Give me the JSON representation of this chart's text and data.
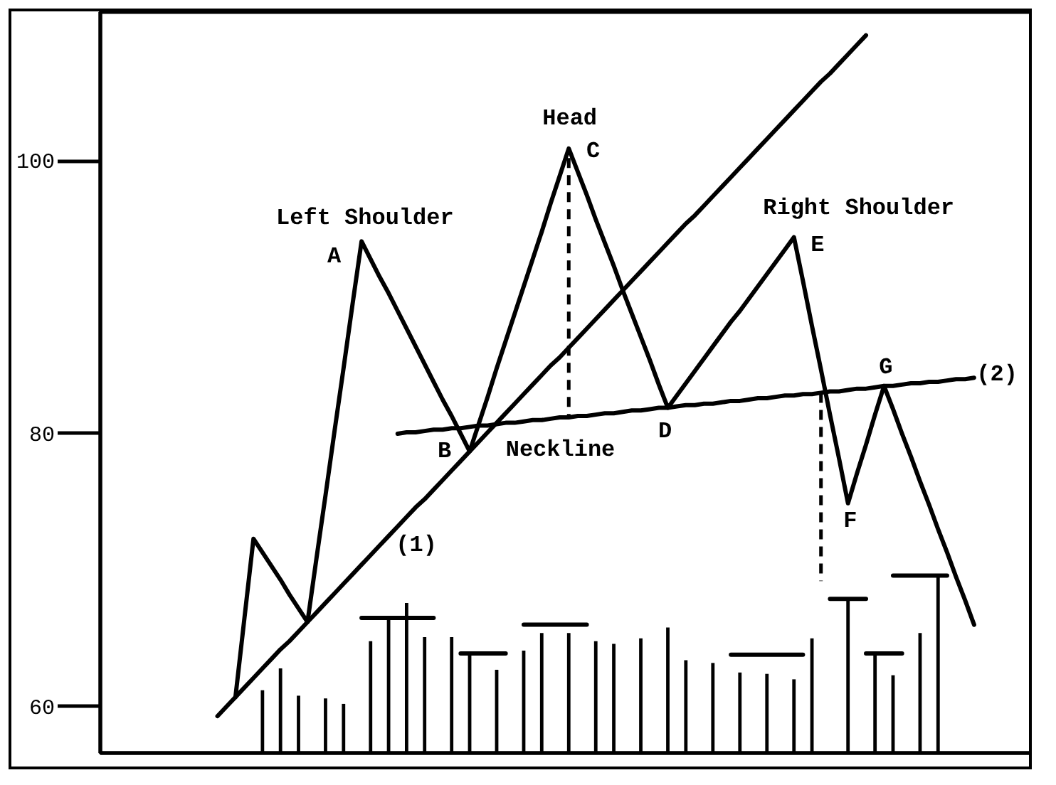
{
  "chart_data": {
    "type": "line",
    "ylim": [
      56.6,
      110.9
    ],
    "yticks": [
      60,
      80,
      100
    ],
    "tick_labels": "y",
    "line_style": "solid",
    "categories": [
      null,
      null,
      null,
      null,
      null,
      null,
      null,
      null,
      null,
      null,
      null,
      null,
      null,
      null,
      null,
      null,
      null,
      null,
      null,
      null,
      null,
      null,
      null,
      null,
      null,
      null,
      null,
      null,
      null,
      null,
      null,
      null,
      null,
      null,
      null,
      null,
      null,
      null,
      null,
      null,
      null,
      null,
      null,
      null,
      null,
      null,
      null,
      null,
      null,
      null,
      null,
      null,
      null,
      null,
      null,
      null,
      null,
      null,
      null,
      null,
      null,
      null,
      null,
      null,
      null,
      null,
      null,
      null,
      null,
      null,
      null,
      null,
      null,
      null,
      null,
      null,
      null,
      null,
      null,
      null,
      null,
      null,
      null,
      null,
      null
    ],
    "series": [
      {
        "type": "bar",
        "color": "#000000",
        "values": [
          null,
          null,
          null,
          null,
          null,
          61.2,
          null,
          62.8,
          null,
          60.8,
          null,
          null,
          60.6,
          null,
          60.2,
          null,
          null,
          64.8,
          null,
          66.5,
          null,
          67.6,
          null,
          65.1,
          null,
          null,
          65.1,
          null,
          63.9,
          null,
          null,
          62.7,
          null,
          null,
          64.1,
          null,
          65.4,
          null,
          null,
          65.4,
          null,
          null,
          64.8,
          null,
          64.6,
          null,
          null,
          65.0,
          null,
          null,
          65.8,
          null,
          63.4,
          null,
          null,
          63.2,
          null,
          null,
          62.5,
          null,
          null,
          62.4,
          null,
          null,
          62.0,
          null,
          65.0,
          null,
          null,
          null,
          67.9,
          null,
          null,
          63.9,
          null,
          62.3,
          null,
          null,
          65.4,
          null,
          69.6,
          null,
          null,
          null,
          null
        ]
      },
      {
        "color": "#000000",
        "values": [
          null,
          null,
          null,
          null,
          null,
          null,
          null,
          null,
          null,
          null,
          null,
          null,
          null,
          null,
          null,
          null,
          66.5,
          66.5,
          66.5,
          66.5,
          66.5,
          66.5,
          66.5,
          66.5,
          66.5,
          null,
          null,
          63.9,
          63.9,
          63.9,
          63.9,
          63.9,
          63.9,
          null,
          66.0,
          66.0,
          66.0,
          66.0,
          66.0,
          66.0,
          66.0,
          66.0,
          null,
          null,
          null,
          null,
          null,
          null,
          null,
          null,
          null,
          null,
          null,
          null,
          null,
          null,
          null,
          63.8,
          63.8,
          63.8,
          63.8,
          63.8,
          63.8,
          63.8,
          63.8,
          63.8,
          null,
          null,
          67.9,
          67.9,
          67.9,
          67.9,
          67.9,
          null,
          null,
          69.6,
          69.6,
          69.6,
          69.6,
          69.6,
          69.6,
          69.6,
          null,
          null,
          null
        ]
      },
      {
        "color": "#000000",
        "values": [
          null,
          null,
          null,
          null,
          null,
          null,
          null,
          null,
          null,
          null,
          null,
          null,
          null,
          null,
          null,
          null,
          null,
          null,
          null,
          null,
          null,
          null,
          null,
          null,
          null,
          null,
          null,
          null,
          null,
          null,
          null,
          null,
          null,
          null,
          null,
          null,
          null,
          null,
          null,
          null,
          null,
          null,
          null,
          null,
          null,
          null,
          null,
          null,
          null,
          null,
          null,
          null,
          null,
          null,
          null,
          null,
          null,
          null,
          null,
          null,
          null,
          null,
          null,
          null,
          null,
          null,
          null,
          null,
          null,
          null,
          null,
          null,
          63.9,
          63.9,
          63.9,
          63.9,
          63.9,
          null,
          null,
          null,
          null,
          null,
          null,
          null,
          null
        ]
      },
      {
        "color": "#000000",
        "values": [
          59.3,
          60.0,
          60.7,
          61.4,
          62.1,
          62.8,
          63.5,
          64.2,
          64.8,
          65.5,
          66.2,
          66.9,
          67.6,
          68.3,
          69.0,
          69.7,
          70.4,
          71.1,
          71.8,
          72.5,
          73.2,
          73.9,
          74.6,
          75.2,
          75.9,
          76.6,
          77.3,
          78.0,
          78.7,
          79.4,
          80.1,
          80.8,
          81.5,
          82.2,
          82.9,
          83.6,
          84.3,
          85.0,
          85.6,
          86.3,
          87.0,
          87.7,
          88.4,
          89.1,
          89.8,
          90.5,
          91.2,
          91.9,
          92.6,
          93.3,
          94.0,
          94.7,
          95.4,
          96.0,
          96.7,
          97.4,
          98.1,
          98.8,
          99.5,
          100.2,
          100.9,
          101.6,
          102.3,
          103.0,
          103.7,
          104.4,
          105.1,
          105.8,
          106.4,
          107.1,
          107.8,
          108.5,
          109.2,
          null,
          null,
          null,
          null,
          null,
          null,
          null,
          null,
          null,
          null,
          null,
          null
        ]
      },
      {
        "color": "#000000",
        "values": [
          null,
          null,
          null,
          null,
          null,
          null,
          null,
          null,
          null,
          null,
          null,
          null,
          null,
          null,
          null,
          null,
          null,
          null,
          null,
          null,
          80.0,
          80.1,
          80.1,
          80.2,
          80.3,
          80.3,
          80.4,
          80.4,
          80.5,
          80.6,
          80.6,
          80.7,
          80.8,
          80.8,
          80.9,
          81.0,
          81.0,
          81.1,
          81.2,
          81.2,
          81.3,
          81.3,
          81.4,
          81.5,
          81.5,
          81.6,
          81.7,
          81.7,
          81.8,
          81.9,
          81.9,
          82.0,
          82.1,
          82.1,
          82.2,
          82.2,
          82.3,
          82.4,
          82.4,
          82.5,
          82.6,
          82.6,
          82.7,
          82.8,
          82.8,
          82.9,
          82.9,
          83.0,
          83.1,
          83.1,
          83.2,
          83.3,
          83.3,
          83.4,
          83.5,
          83.5,
          83.6,
          83.7,
          83.7,
          83.8,
          83.8,
          83.9,
          84.0,
          84.0,
          84.1
        ],
        "errors": [
          null,
          null,
          null,
          null,
          null,
          null,
          null,
          null,
          null,
          null,
          null,
          null,
          null,
          null,
          null,
          null,
          null,
          null,
          null,
          null,
          null,
          null,
          null,
          null,
          null,
          null,
          null,
          null,
          null,
          null,
          null,
          null,
          null,
          null,
          null,
          null,
          null,
          null,
          null,
          [
            81.2,
            100.2
          ],
          null,
          null,
          null,
          null,
          null,
          null,
          null,
          null,
          null,
          null,
          null,
          null,
          null,
          null,
          null,
          null,
          null,
          null,
          null,
          null,
          null,
          null,
          null,
          null,
          null,
          null,
          null,
          [
            69.2,
            83.0
          ],
          null,
          null,
          null,
          null,
          null,
          null,
          null,
          null,
          null,
          null,
          null,
          null,
          null,
          null,
          null,
          null,
          null
        ]
      },
      {
        "color": "#000000",
        "values": [
          null,
          null,
          60.7,
          66.5,
          72.3,
          71.3,
          70.3,
          69.3,
          68.2,
          67.2,
          66.2,
          70.9,
          75.5,
          80.2,
          84.8,
          89.5,
          94.1,
          92.8,
          91.5,
          90.3,
          89.0,
          87.7,
          86.4,
          85.1,
          83.8,
          82.5,
          81.3,
          80.0,
          78.7,
          80.7,
          82.7,
          84.8,
          86.8,
          88.8,
          90.8,
          92.8,
          94.8,
          96.9,
          98.9,
          100.9,
          99.2,
          97.5,
          95.7,
          94.0,
          92.3,
          90.5,
          88.8,
          87.1,
          85.4,
          83.6,
          81.9,
          82.8,
          83.7,
          84.6,
          85.5,
          86.4,
          87.3,
          88.2,
          89.0,
          89.9,
          90.8,
          91.7,
          92.6,
          93.5,
          94.4,
          91.2,
          87.9,
          84.7,
          81.4,
          78.2,
          74.9,
          77.1,
          79.2,
          81.4,
          83.5,
          81.8,
          80.0,
          78.3,
          76.5,
          74.8,
          73.0,
          71.3,
          69.5,
          67.8,
          66.0
        ]
      }
    ],
    "annotations": [
      "Head",
      "C",
      "Left Shoulder",
      "A",
      "Right Shoulder",
      "E",
      "(2)",
      "G",
      "B",
      "Neckline",
      "D",
      "F",
      "(1)"
    ]
  }
}
